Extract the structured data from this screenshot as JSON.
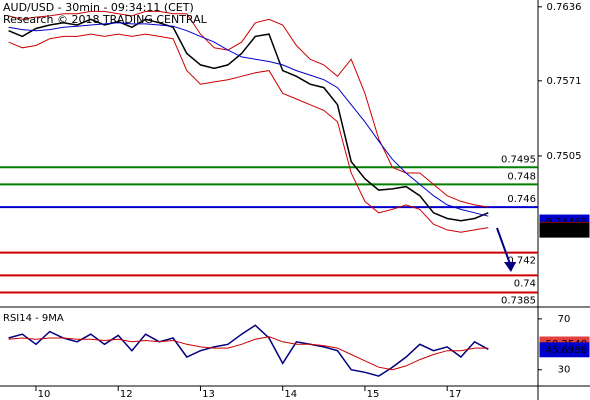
{
  "header": {
    "title": "AUD/USD - 30min - 09:34:11 (CET)",
    "subtitle": "Research © 2018 TRADING CENTRAL"
  },
  "chart_data": [
    {
      "type": "line",
      "x": [
        -16,
        -8,
        0,
        8,
        16,
        24,
        32,
        40,
        48,
        56,
        64,
        72,
        80,
        88,
        96,
        104,
        112,
        120,
        128,
        136,
        144,
        152,
        160,
        168,
        176,
        184,
        192,
        200,
        208,
        216,
        224,
        232,
        240,
        248,
        256,
        264
      ],
      "xlim": [
        -21,
        293
      ],
      "ylim": [
        0.7374,
        0.7642
      ],
      "yticks": [
        0.7636,
        0.7571,
        0.7505
      ],
      "series": [
        {
          "color": "#000000",
          "values": [
            0.7615,
            0.761,
            0.7617,
            0.762,
            0.7622,
            0.762,
            0.7625,
            0.762,
            0.7623,
            0.7618,
            0.7625,
            0.7622,
            0.7618,
            0.7595,
            0.7585,
            0.7582,
            0.7585,
            0.7595,
            0.761,
            0.7612,
            0.758,
            0.7575,
            0.7568,
            0.7565,
            0.755,
            0.75,
            0.7485,
            0.7475,
            0.7476,
            0.7478,
            0.747,
            0.7455,
            0.745,
            0.7448,
            0.745,
            0.7455
          ]
        },
        {
          "color": "#cc0000",
          "values": [
            0.7628,
            0.7625,
            0.7627,
            0.7628,
            0.763,
            0.763,
            0.7632,
            0.7632,
            0.763,
            0.7628,
            0.7632,
            0.7632,
            0.763,
            0.763,
            0.7612,
            0.76,
            0.7598,
            0.7605,
            0.7622,
            0.7625,
            0.762,
            0.7602,
            0.759,
            0.7585,
            0.7575,
            0.759,
            0.756,
            0.752,
            0.7495,
            0.749,
            0.749,
            0.748,
            0.747,
            0.7465,
            0.7462,
            0.746
          ]
        },
        {
          "color": "#cc0000",
          "values": [
            0.7605,
            0.76,
            0.7602,
            0.7608,
            0.761,
            0.761,
            0.7612,
            0.761,
            0.7612,
            0.761,
            0.7612,
            0.761,
            0.7608,
            0.758,
            0.7568,
            0.757,
            0.7572,
            0.7575,
            0.7578,
            0.758,
            0.756,
            0.7555,
            0.755,
            0.7545,
            0.7535,
            0.749,
            0.7465,
            0.7455,
            0.7458,
            0.7462,
            0.7458,
            0.7445,
            0.744,
            0.7438,
            0.744,
            0.7442
          ]
        },
        {
          "color": "#0000cc",
          "values": [
            0.7618,
            0.7616,
            0.7615,
            0.7616,
            0.7618,
            0.7619,
            0.762,
            0.7621,
            0.7622,
            0.7621,
            0.7621,
            0.762,
            0.7619,
            0.7615,
            0.761,
            0.7605,
            0.7598,
            0.7592,
            0.759,
            0.7588,
            0.7585,
            0.758,
            0.7576,
            0.7572,
            0.7565,
            0.755,
            0.7535,
            0.7518,
            0.7502,
            0.749,
            0.748,
            0.747,
            0.7462,
            0.7458,
            0.7455,
            0.7452
          ]
        }
      ],
      "levels": [
        {
          "value": 0.7495,
          "color": "#008000"
        },
        {
          "value": 0.748,
          "color": "#008000"
        },
        {
          "value": 0.746,
          "color": "#0000cc"
        },
        {
          "value": 0.742,
          "color": "#cc0000"
        },
        {
          "value": 0.74,
          "color": "#cc0000"
        },
        {
          "value": 0.7385,
          "color": "#cc0000"
        }
      ],
      "markers": [
        {
          "value": 0.74469,
          "color": "#0000cc",
          "filled": true
        },
        {
          "value": 0.74404,
          "color": "#cc0000",
          "filled": false
        },
        {
          "value": 0.74398,
          "color": "#000000",
          "filled": true
        }
      ]
    },
    {
      "type": "line",
      "title": "RSI14 - 9MA",
      "x": [
        -16,
        -8,
        0,
        8,
        16,
        24,
        32,
        40,
        48,
        56,
        64,
        72,
        80,
        88,
        96,
        104,
        112,
        120,
        128,
        136,
        144,
        152,
        160,
        168,
        176,
        184,
        192,
        200,
        208,
        216,
        224,
        232,
        240,
        248,
        256,
        264
      ],
      "xlim": [
        -21,
        293
      ],
      "ylim": [
        18,
        77
      ],
      "yticks": [
        70,
        30
      ],
      "xticks": [
        {
          "value": 0,
          "label": "10"
        },
        {
          "value": 48,
          "label": "12"
        },
        {
          "value": 96,
          "label": "13"
        },
        {
          "value": 144,
          "label": "14"
        },
        {
          "value": 192,
          "label": "15"
        },
        {
          "value": 240,
          "label": "17"
        }
      ],
      "series": [
        {
          "color": "#000080",
          "values": [
            55,
            58,
            50,
            60,
            55,
            52,
            58,
            50,
            57,
            45,
            58,
            52,
            55,
            40,
            45,
            48,
            50,
            58,
            65,
            55,
            35,
            52,
            50,
            48,
            45,
            30,
            28,
            25,
            32,
            40,
            50,
            45,
            48,
            40,
            52,
            46
          ]
        },
        {
          "color": "#cc0000",
          "values": [
            54,
            55,
            54,
            55,
            55,
            54,
            54,
            53,
            54,
            52,
            53,
            52,
            53,
            50,
            48,
            47,
            47,
            50,
            54,
            56,
            52,
            50,
            50,
            49,
            47,
            42,
            37,
            32,
            30,
            33,
            38,
            42,
            45,
            45,
            47,
            47
          ]
        }
      ],
      "markers": [
        {
          "value": 50.2548,
          "color": "#e04040",
          "filled": true
        },
        {
          "value": 45.6986,
          "color": "#0000cc",
          "filled": true
        }
      ]
    }
  ]
}
